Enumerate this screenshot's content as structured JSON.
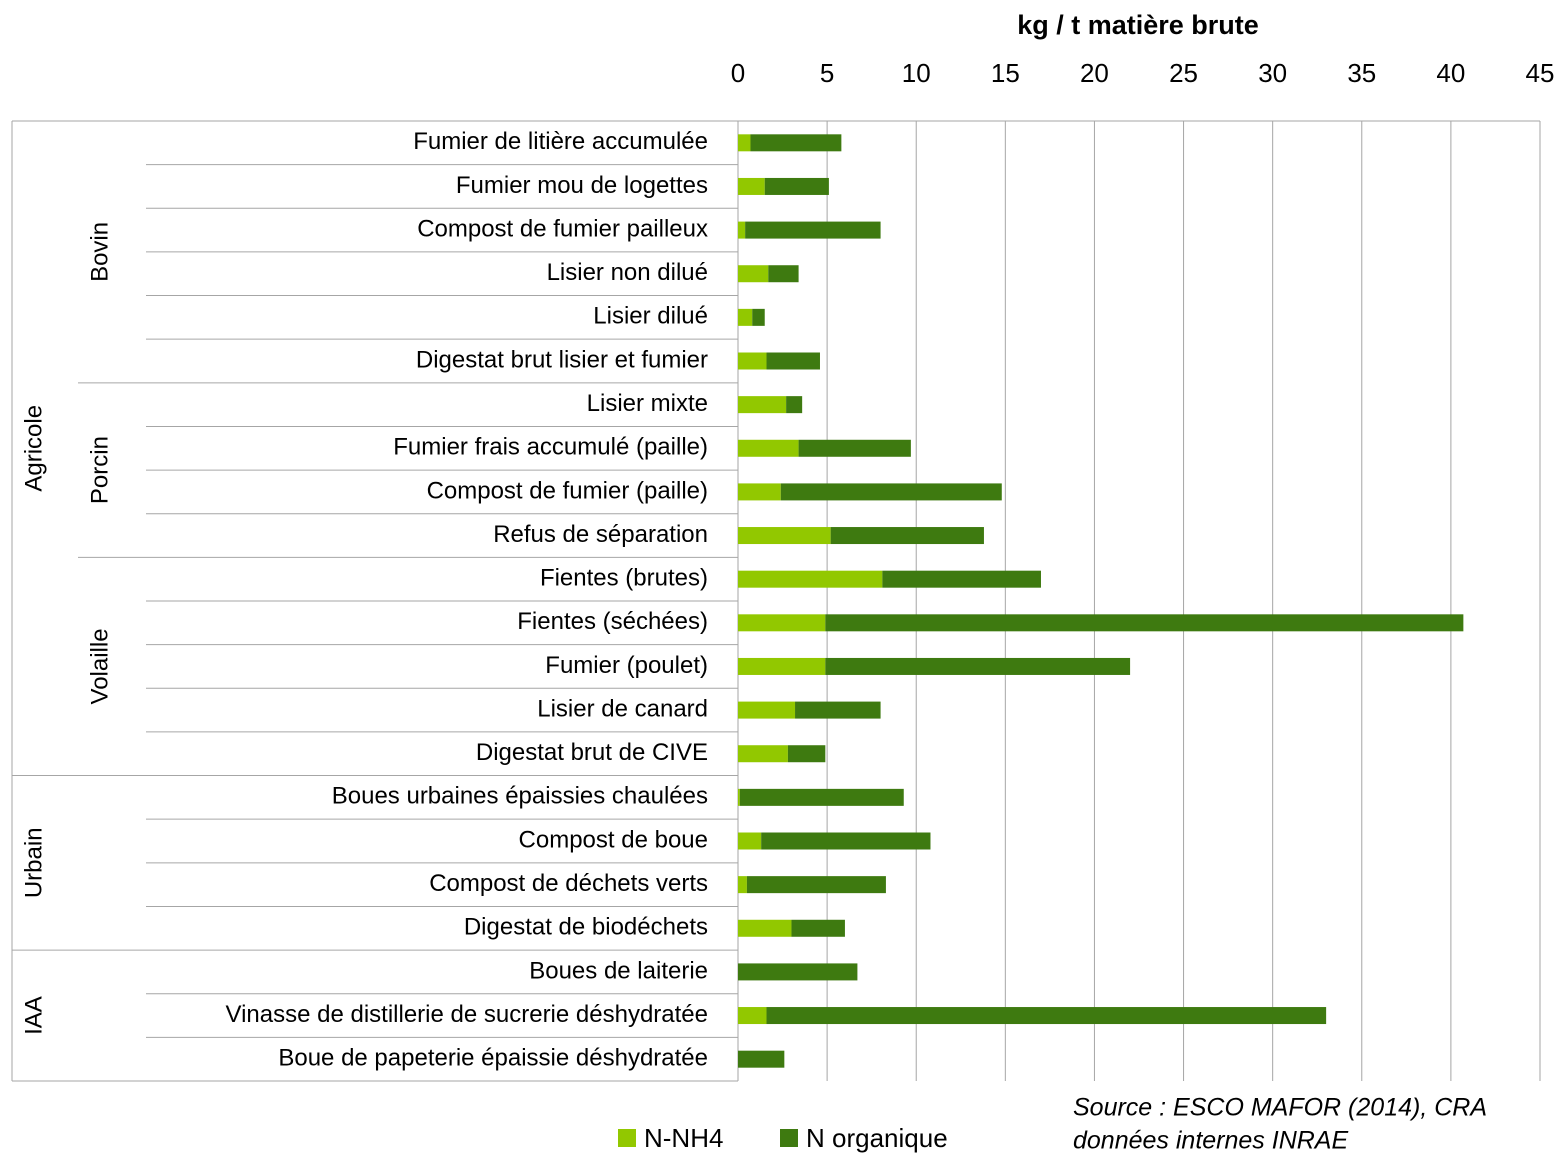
{
  "chart_data": {
    "type": "stacked_barh",
    "xlabel": "kg / t matière brute",
    "categories": [
      "Fumier de litière accumulée",
      "Fumier mou de logettes",
      "Compost de fumier pailleux",
      "Lisier non dilué",
      "Lisier dilué",
      "Digestat brut lisier et fumier",
      "Lisier mixte",
      "Fumier frais accumulé (paille)",
      "Compost de fumier (paille)",
      "Refus de séparation",
      "Fientes (brutes)",
      "Fientes (séchées)",
      "Fumier (poulet)",
      "Lisier de canard",
      "Digestat brut de CIVE",
      "Boues urbaines épaissies chaulées",
      "Compost de boue",
      "Compost de déchets verts",
      "Digestat de biodéchets",
      "Boues de laiterie",
      "Vinasse de distillerie de sucrerie déshydratée",
      "Boue de papeterie épaissie déshydratée"
    ],
    "group": [
      "Agricole",
      "Agricole",
      "Agricole",
      "Agricole",
      "Agricole",
      "Agricole",
      "Agricole",
      "Agricole",
      "Agricole",
      "Agricole",
      "Agricole",
      "Agricole",
      "Agricole",
      "Agricole",
      "Agricole",
      "Urbain",
      "Urbain",
      "Urbain",
      "Urbain",
      "IAA",
      "IAA",
      "IAA"
    ],
    "subgroup": [
      "Bovin",
      "Bovin",
      "Bovin",
      "Bovin",
      "Bovin",
      "Bovin",
      "Porcin",
      "Porcin",
      "Porcin",
      "Porcin",
      "Volaille",
      "Volaille",
      "Volaille",
      "Volaille",
      "Volaille",
      null,
      null,
      null,
      null,
      null,
      null,
      null
    ],
    "series": [
      {
        "name": "N-NH4",
        "color": "#92c800",
        "values": [
          0.7,
          1.5,
          0.4,
          1.7,
          0.8,
          1.6,
          2.7,
          3.4,
          2.4,
          5.2,
          8.1,
          4.9,
          4.9,
          3.2,
          2.8,
          0.1,
          1.3,
          0.5,
          3.0,
          0,
          1.6,
          0
        ]
      },
      {
        "name": "N organique",
        "color": "#3e7a10",
        "values": [
          5.1,
          3.6,
          7.6,
          1.7,
          0.7,
          3.0,
          0.9,
          6.3,
          12.4,
          8.6,
          8.9,
          35.8,
          17.1,
          4.8,
          2.1,
          9.2,
          9.5,
          7.8,
          3.0,
          6.7,
          31.4,
          2.6
        ]
      }
    ],
    "xlim": [
      0,
      45
    ],
    "xticks": [
      0,
      5,
      10,
      15,
      20,
      25,
      30,
      35,
      40,
      45
    ],
    "grid": true,
    "legend": "bottom",
    "source": [
      "Source : ESCO MAFOR (2014), CRA",
      "données internes INRAE"
    ]
  }
}
